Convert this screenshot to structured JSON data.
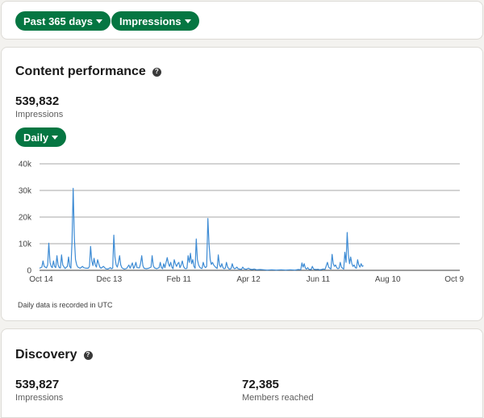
{
  "filters": {
    "range_label": "Past 365 days",
    "metric_label": "Impressions"
  },
  "performance": {
    "title": "Content performance",
    "total": "539,832",
    "total_label": "Impressions",
    "granularity_label": "Daily",
    "note": "Daily data is recorded in UTC"
  },
  "discovery": {
    "title": "Discovery",
    "impressions": "539,827",
    "impressions_label": "Impressions",
    "members_reached": "72,385",
    "members_reached_label": "Members reached"
  },
  "colors": {
    "accent": "#057642",
    "line": "#3d8bd4"
  },
  "chart_data": {
    "type": "line",
    "ylim": [
      0,
      40000
    ],
    "y_ticks": [
      {
        "value": 0,
        "label": "0"
      },
      {
        "value": 10000,
        "label": "10k"
      },
      {
        "value": 20000,
        "label": "20k"
      },
      {
        "value": 30000,
        "label": "30k"
      },
      {
        "value": 40000,
        "label": "40k"
      }
    ],
    "x_ticks": [
      {
        "day": 0,
        "label": "Oct 14"
      },
      {
        "day": 60,
        "label": "Dec 13"
      },
      {
        "day": 120,
        "label": "Feb 11"
      },
      {
        "day": 180,
        "label": "Apr 12"
      },
      {
        "day": 240,
        "label": "Jun 11"
      },
      {
        "day": 300,
        "label": "Aug 10"
      },
      {
        "day": 360,
        "label": "Oct 9"
      }
    ],
    "x_domain": [
      0,
      362
    ],
    "grid": true,
    "series": [
      {
        "points": [
          [
            0,
            800
          ],
          [
            2,
            1200
          ],
          [
            3,
            3500
          ],
          [
            4,
            1500
          ],
          [
            6,
            900
          ],
          [
            7,
            2000
          ],
          [
            8,
            10200
          ],
          [
            9,
            3000
          ],
          [
            10,
            1500
          ],
          [
            11,
            1000
          ],
          [
            12,
            3500
          ],
          [
            13,
            1500
          ],
          [
            14,
            1000
          ],
          [
            15,
            5500
          ],
          [
            16,
            2000
          ],
          [
            17,
            1000
          ],
          [
            18,
            900
          ],
          [
            19,
            5800
          ],
          [
            20,
            2000
          ],
          [
            22,
            700
          ],
          [
            24,
            1500
          ],
          [
            25,
            5000
          ],
          [
            26,
            1500
          ],
          [
            27,
            800
          ],
          [
            28,
            11000
          ],
          [
            29,
            30800
          ],
          [
            30,
            12000
          ],
          [
            31,
            4000
          ],
          [
            32,
            2000
          ],
          [
            33,
            1200
          ],
          [
            35,
            800
          ],
          [
            37,
            1500
          ],
          [
            38,
            1000
          ],
          [
            40,
            800
          ],
          [
            42,
            800
          ],
          [
            43,
            1500
          ],
          [
            44,
            9000
          ],
          [
            45,
            3500
          ],
          [
            46,
            1800
          ],
          [
            47,
            4500
          ],
          [
            48,
            2000
          ],
          [
            49,
            1200
          ],
          [
            50,
            4000
          ],
          [
            51,
            2500
          ],
          [
            52,
            1200
          ],
          [
            53,
            800
          ],
          [
            55,
            1500
          ],
          [
            57,
            600
          ],
          [
            59,
            500
          ],
          [
            61,
            1000
          ],
          [
            62,
            600
          ],
          [
            63,
            800
          ],
          [
            64,
            13200
          ],
          [
            65,
            5000
          ],
          [
            66,
            2000
          ],
          [
            67,
            1200
          ],
          [
            68,
            3000
          ],
          [
            69,
            5500
          ],
          [
            70,
            2000
          ],
          [
            71,
            900
          ],
          [
            73,
            500
          ],
          [
            75,
            700
          ],
          [
            77,
            2000
          ],
          [
            78,
            800
          ],
          [
            80,
            2800
          ],
          [
            81,
            700
          ],
          [
            82,
            1500
          ],
          [
            83,
            3000
          ],
          [
            84,
            1000
          ],
          [
            86,
            900
          ],
          [
            87,
            2500
          ],
          [
            88,
            5500
          ],
          [
            89,
            1800
          ],
          [
            90,
            800
          ],
          [
            92,
            600
          ],
          [
            94,
            800
          ],
          [
            96,
            1200
          ],
          [
            97,
            5500
          ],
          [
            98,
            1800
          ],
          [
            99,
            900
          ],
          [
            101,
            600
          ],
          [
            103,
            1000
          ],
          [
            104,
            3000
          ],
          [
            105,
            1000
          ],
          [
            106,
            600
          ],
          [
            107,
            2500
          ],
          [
            108,
            1000
          ],
          [
            109,
            3000
          ],
          [
            110,
            4800
          ],
          [
            111,
            2500
          ],
          [
            112,
            1500
          ],
          [
            113,
            3000
          ],
          [
            114,
            1200
          ],
          [
            115,
            600
          ],
          [
            116,
            4000
          ],
          [
            117,
            2500
          ],
          [
            118,
            1500
          ],
          [
            119,
            2500
          ],
          [
            120,
            3000
          ],
          [
            121,
            1000
          ],
          [
            122,
            2000
          ],
          [
            123,
            3500
          ],
          [
            124,
            1500
          ],
          [
            125,
            800
          ],
          [
            126,
            600
          ],
          [
            127,
            800
          ],
          [
            128,
            5500
          ],
          [
            129,
            3000
          ],
          [
            130,
            6400
          ],
          [
            131,
            2500
          ],
          [
            132,
            4000
          ],
          [
            133,
            1500
          ],
          [
            134,
            800
          ],
          [
            135,
            11800
          ],
          [
            136,
            4000
          ],
          [
            137,
            2000
          ],
          [
            138,
            1200
          ],
          [
            139,
            800
          ],
          [
            140,
            700
          ],
          [
            141,
            3000
          ],
          [
            142,
            1500
          ],
          [
            143,
            1000
          ],
          [
            144,
            1500
          ],
          [
            145,
            19500
          ],
          [
            146,
            10000
          ],
          [
            147,
            4000
          ],
          [
            148,
            2200
          ],
          [
            149,
            3000
          ],
          [
            150,
            2000
          ],
          [
            151,
            1500
          ],
          [
            152,
            1000
          ],
          [
            153,
            700
          ],
          [
            154,
            5800
          ],
          [
            155,
            2000
          ],
          [
            156,
            1200
          ],
          [
            157,
            2500
          ],
          [
            158,
            1000
          ],
          [
            159,
            600
          ],
          [
            160,
            800
          ],
          [
            161,
            3000
          ],
          [
            162,
            1200
          ],
          [
            163,
            600
          ],
          [
            164,
            500
          ],
          [
            165,
            700
          ],
          [
            166,
            2500
          ],
          [
            167,
            1000
          ],
          [
            168,
            600
          ],
          [
            169,
            800
          ],
          [
            170,
            1200
          ],
          [
            171,
            600
          ],
          [
            172,
            500
          ],
          [
            174,
            400
          ],
          [
            175,
            1200
          ],
          [
            176,
            600
          ],
          [
            178,
            400
          ],
          [
            180,
            800
          ],
          [
            181,
            500
          ],
          [
            183,
            300
          ],
          [
            185,
            500
          ],
          [
            187,
            200
          ],
          [
            190,
            300
          ],
          [
            193,
            200
          ],
          [
            196,
            100
          ],
          [
            200,
            200
          ],
          [
            204,
            100
          ],
          [
            208,
            200
          ],
          [
            212,
            100
          ],
          [
            216,
            200
          ],
          [
            220,
            100
          ],
          [
            223,
            300
          ],
          [
            225,
            200
          ],
          [
            226,
            2800
          ],
          [
            227,
            1200
          ],
          [
            228,
            2500
          ],
          [
            229,
            800
          ],
          [
            230,
            500
          ],
          [
            231,
            1000
          ],
          [
            232,
            400
          ],
          [
            234,
            300
          ],
          [
            235,
            1500
          ],
          [
            236,
            500
          ],
          [
            238,
            300
          ],
          [
            240,
            400
          ],
          [
            241,
            200
          ],
          [
            243,
            300
          ],
          [
            244,
            500
          ],
          [
            246,
            400
          ],
          [
            248,
            3000
          ],
          [
            249,
            1200
          ],
          [
            250,
            800
          ],
          [
            251,
            500
          ],
          [
            252,
            6000
          ],
          [
            253,
            2500
          ],
          [
            254,
            1500
          ],
          [
            255,
            2000
          ],
          [
            256,
            1000
          ],
          [
            257,
            600
          ],
          [
            258,
            800
          ],
          [
            259,
            3000
          ],
          [
            260,
            1200
          ],
          [
            261,
            800
          ],
          [
            262,
            500
          ],
          [
            263,
            6800
          ],
          [
            264,
            3000
          ],
          [
            265,
            14200
          ],
          [
            266,
            6000
          ],
          [
            267,
            2500
          ],
          [
            268,
            5000
          ],
          [
            269,
            2500
          ],
          [
            270,
            1500
          ],
          [
            271,
            2000
          ],
          [
            272,
            1000
          ],
          [
            273,
            800
          ],
          [
            274,
            4000
          ],
          [
            275,
            2000
          ],
          [
            276,
            1200
          ],
          [
            277,
            2500
          ],
          [
            278,
            1500
          ],
          [
            279,
            1800
          ]
        ]
      }
    ]
  }
}
